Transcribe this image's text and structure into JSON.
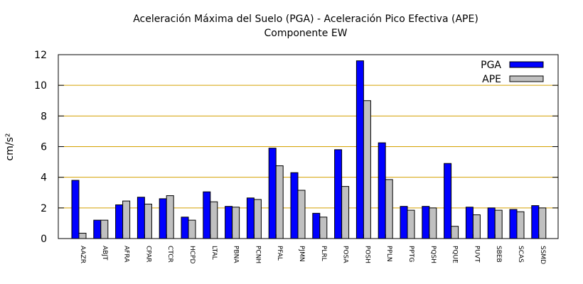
{
  "chart_data": {
    "type": "bar",
    "title": "Aceleración Máxima del Suelo (PGA) -  Aceleración Pico Efectiva (APE)",
    "subtitle": "Componente EW",
    "ylabel": "cm/s²",
    "xlabel": "",
    "ylim": [
      0,
      12
    ],
    "yticks": [
      0,
      2,
      4,
      6,
      8,
      10,
      12
    ],
    "grid": true,
    "grid_color": "#d4a000",
    "legend_position": "top-right",
    "categories": [
      "AAZR",
      "ABJT",
      "AFRA",
      "CPAR",
      "CTCR",
      "HCPD",
      "LTAL",
      "PBNA",
      "PCNH",
      "PFAL",
      "PJMN",
      "PLRL",
      "POSA",
      "POSH",
      "PPLN",
      "PPTG",
      "PQSH",
      "PQUE",
      "PUVT",
      "SBEB",
      "SCAS",
      "SSMD"
    ],
    "series": [
      {
        "name": "PGA",
        "color": "#0000ff",
        "values": [
          3.8,
          1.2,
          2.2,
          2.7,
          2.6,
          1.4,
          3.05,
          2.1,
          2.65,
          5.9,
          4.3,
          1.65,
          5.8,
          11.6,
          6.25,
          2.1,
          2.1,
          4.9,
          2.05,
          2.0,
          1.9,
          2.15
        ]
      },
      {
        "name": "APE",
        "color": "#c0c0c0",
        "values": [
          0.35,
          1.2,
          2.45,
          2.25,
          2.8,
          1.2,
          2.4,
          2.05,
          2.55,
          4.75,
          3.15,
          1.4,
          3.4,
          9.0,
          3.85,
          1.85,
          2.0,
          0.8,
          1.55,
          1.85,
          1.75,
          2.0
        ]
      }
    ]
  }
}
